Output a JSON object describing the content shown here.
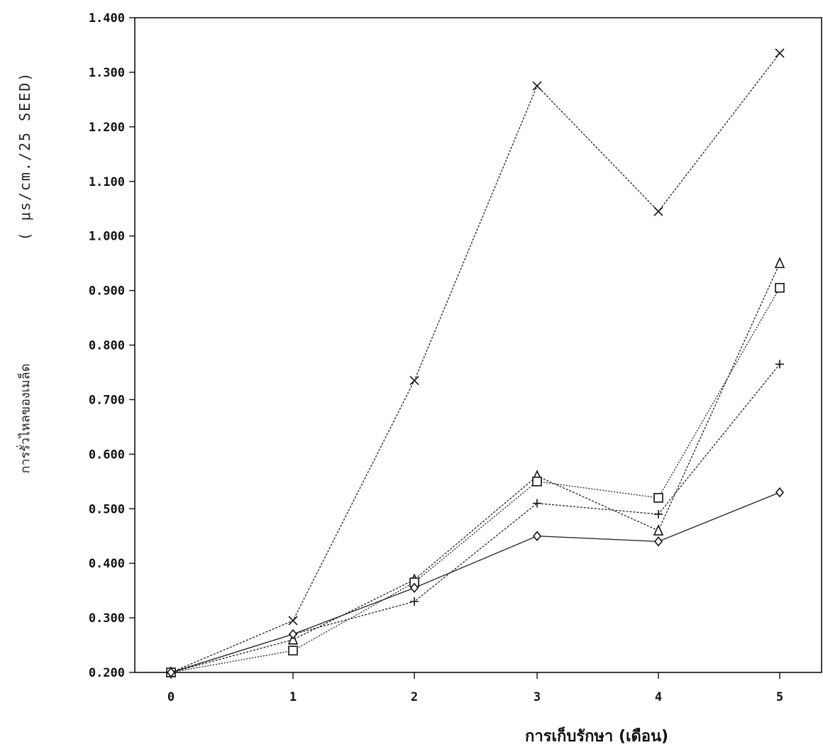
{
  "chart_data": {
    "type": "line",
    "title": "",
    "ylabel_units": "( μs/cm./25 SEED)",
    "ylabel": "การรั่วไหลของเมล็ด",
    "xlabel": "การเก็บรักษา    (เดือน)",
    "x": [
      0,
      1,
      2,
      3,
      4,
      5
    ],
    "xtick_labels": [
      "0",
      "1",
      "2",
      "3",
      "4",
      "5"
    ],
    "ylim": [
      0.2,
      1.4
    ],
    "yticks": [
      0.2,
      0.3,
      0.4,
      0.5,
      0.6,
      0.7,
      0.8,
      0.9,
      1.0,
      1.1,
      1.2,
      1.3,
      1.4
    ],
    "ytick_labels": [
      "0.200",
      "0.300",
      "0.400",
      "0.500",
      "0.600",
      "0.700",
      "0.800",
      "0.900",
      "1.000",
      "1.100",
      "1.200",
      "1.300",
      "1.400"
    ],
    "grid": false,
    "legend": "none",
    "series": [
      {
        "marker": "x",
        "values": [
          0.2,
          0.295,
          0.735,
          1.275,
          1.045,
          1.335
        ]
      },
      {
        "marker": "triangle",
        "values": [
          0.2,
          0.26,
          0.37,
          0.56,
          0.46,
          0.95
        ]
      },
      {
        "marker": "square",
        "values": [
          0.2,
          0.24,
          0.365,
          0.55,
          0.52,
          0.905
        ]
      },
      {
        "marker": "plus",
        "values": [
          0.2,
          0.27,
          0.33,
          0.51,
          0.49,
          0.765
        ]
      },
      {
        "marker": "diamond",
        "values": [
          0.2,
          0.27,
          0.355,
          0.45,
          0.44,
          0.53
        ]
      }
    ]
  }
}
